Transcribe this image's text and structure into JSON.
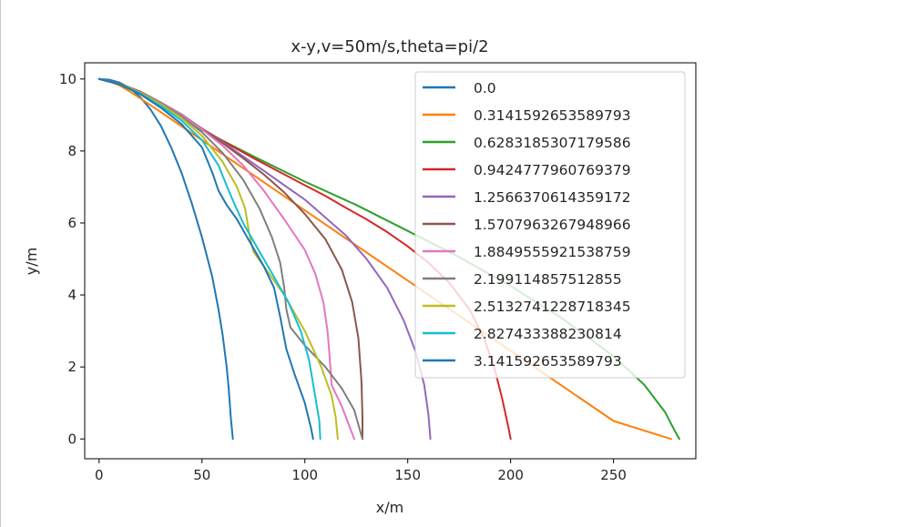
{
  "chart_data": {
    "type": "line",
    "title": "x-y,v=50m/s,theta=pi/2",
    "xlabel": "x/m",
    "ylabel": "y/m",
    "xlim": [
      -7,
      290
    ],
    "ylim": [
      -0.55,
      10.45
    ],
    "xticks": [
      0,
      50,
      100,
      150,
      200,
      250
    ],
    "yticks": [
      0,
      2,
      4,
      6,
      8,
      10
    ],
    "grid": false,
    "legend_position": "upper right",
    "series": [
      {
        "name": "0.0",
        "color": "#1f77b4",
        "points": [
          [
            0,
            10
          ],
          [
            5,
            9.98
          ],
          [
            10,
            9.9
          ],
          [
            15,
            9.75
          ],
          [
            20,
            9.5
          ],
          [
            25,
            9.15
          ],
          [
            30,
            8.7
          ],
          [
            35,
            8.1
          ],
          [
            40,
            7.4
          ],
          [
            45,
            6.55
          ],
          [
            50,
            5.6
          ],
          [
            55,
            4.5
          ],
          [
            58,
            3.6
          ],
          [
            60,
            2.9
          ],
          [
            62,
            2
          ],
          [
            63,
            1.4
          ],
          [
            64,
            0.6
          ],
          [
            65,
            0
          ]
        ]
      },
      {
        "name": "0.3141592653589793",
        "color": "#ff7f0e",
        "points": [
          [
            0,
            10
          ],
          [
            5,
            9.94
          ],
          [
            10,
            9.82
          ],
          [
            15,
            9.65
          ],
          [
            20,
            9.46
          ],
          [
            30,
            9.08
          ],
          [
            50,
            8.3
          ],
          [
            75,
            7.33
          ],
          [
            100,
            6.35
          ],
          [
            150,
            4.4
          ],
          [
            200,
            2.45
          ],
          [
            250,
            0.5
          ],
          [
            278,
            0
          ]
        ]
      },
      {
        "name": "0.6283185307179586",
        "color": "#2ca02c",
        "points": [
          [
            0,
            10
          ],
          [
            10,
            9.85
          ],
          [
            20,
            9.6
          ],
          [
            30,
            9.3
          ],
          [
            40,
            8.95
          ],
          [
            50,
            8.58
          ],
          [
            75,
            7.85
          ],
          [
            100,
            7.15
          ],
          [
            125,
            6.5
          ],
          [
            150,
            5.78
          ],
          [
            175,
            5.05
          ],
          [
            200,
            4.25
          ],
          [
            225,
            3.35
          ],
          [
            250,
            2.3
          ],
          [
            265,
            1.5
          ],
          [
            275,
            0.75
          ],
          [
            280,
            0.2
          ],
          [
            282,
            0
          ]
        ]
      },
      {
        "name": "0.9424777960769379",
        "color": "#d62728",
        "points": [
          [
            0,
            10
          ],
          [
            10,
            9.87
          ],
          [
            20,
            9.62
          ],
          [
            30,
            9.3
          ],
          [
            40,
            8.98
          ],
          [
            50,
            8.62
          ],
          [
            60,
            8.28
          ],
          [
            75,
            7.8
          ],
          [
            90,
            7.35
          ],
          [
            100,
            7.05
          ],
          [
            110,
            6.75
          ],
          [
            120,
            6.42
          ],
          [
            130,
            6.1
          ],
          [
            140,
            5.75
          ],
          [
            150,
            5.35
          ],
          [
            160,
            4.9
          ],
          [
            170,
            4.35
          ],
          [
            180,
            3.6
          ],
          [
            187,
            2.8
          ],
          [
            192,
            2
          ],
          [
            196,
            1.1
          ],
          [
            199,
            0.3
          ],
          [
            200,
            0
          ]
        ]
      },
      {
        "name": "1.2566370614359172",
        "color": "#9467bd",
        "points": [
          [
            0,
            10
          ],
          [
            10,
            9.87
          ],
          [
            20,
            9.64
          ],
          [
            30,
            9.34
          ],
          [
            40,
            9
          ],
          [
            50,
            8.62
          ],
          [
            60,
            8.25
          ],
          [
            70,
            7.85
          ],
          [
            80,
            7.45
          ],
          [
            90,
            7.05
          ],
          [
            100,
            6.65
          ],
          [
            110,
            6.15
          ],
          [
            120,
            5.65
          ],
          [
            130,
            5
          ],
          [
            140,
            4.2
          ],
          [
            148,
            3.3
          ],
          [
            154,
            2.4
          ],
          [
            158,
            1.5
          ],
          [
            160,
            0.7
          ],
          [
            161,
            0
          ]
        ]
      },
      {
        "name": "1.5707963267948966",
        "color": "#8c564b",
        "points": [
          [
            0,
            10
          ],
          [
            10,
            9.87
          ],
          [
            20,
            9.65
          ],
          [
            30,
            9.35
          ],
          [
            40,
            9.02
          ],
          [
            50,
            8.62
          ],
          [
            60,
            8.22
          ],
          [
            70,
            7.8
          ],
          [
            80,
            7.35
          ],
          [
            90,
            6.85
          ],
          [
            100,
            6.25
          ],
          [
            110,
            5.55
          ],
          [
            118,
            4.7
          ],
          [
            123,
            3.8
          ],
          [
            126,
            2.8
          ],
          [
            127.5,
            1.6
          ],
          [
            128,
            0.6
          ],
          [
            128,
            0
          ]
        ]
      },
      {
        "name": "1.8849555921538759",
        "color": "#e377c2",
        "points": [
          [
            0,
            10
          ],
          [
            10,
            9.86
          ],
          [
            20,
            9.63
          ],
          [
            30,
            9.35
          ],
          [
            40,
            9
          ],
          [
            50,
            8.6
          ],
          [
            60,
            8.15
          ],
          [
            70,
            7.6
          ],
          [
            80,
            6.9
          ],
          [
            90,
            6.1
          ],
          [
            100,
            5.25
          ],
          [
            105,
            4.6
          ],
          [
            109,
            3.8
          ],
          [
            111,
            3
          ],
          [
            112,
            2.3
          ],
          [
            113,
            1.5
          ],
          [
            118,
            0.9
          ],
          [
            124,
            0
          ]
        ]
      },
      {
        "name": "2.199114857512855",
        "color": "#7f7f7f",
        "points": [
          [
            0,
            10
          ],
          [
            10,
            9.86
          ],
          [
            20,
            9.63
          ],
          [
            30,
            9.33
          ],
          [
            40,
            8.96
          ],
          [
            50,
            8.52
          ],
          [
            60,
            7.95
          ],
          [
            70,
            7.2
          ],
          [
            78,
            6.4
          ],
          [
            84,
            5.6
          ],
          [
            88,
            4.9
          ],
          [
            90,
            4.2
          ],
          [
            91,
            3.6
          ],
          [
            93,
            3.1
          ],
          [
            100,
            2.6
          ],
          [
            110,
            2
          ],
          [
            118,
            1.4
          ],
          [
            124,
            0.8
          ],
          [
            127,
            0.2
          ],
          [
            128,
            0
          ]
        ]
      },
      {
        "name": "2.5132741228718345",
        "color": "#bcbd22",
        "points": [
          [
            0,
            10
          ],
          [
            10,
            9.86
          ],
          [
            20,
            9.62
          ],
          [
            30,
            9.3
          ],
          [
            40,
            8.92
          ],
          [
            50,
            8.42
          ],
          [
            60,
            7.7
          ],
          [
            67,
            7
          ],
          [
            71,
            6.4
          ],
          [
            73,
            5.7
          ],
          [
            75,
            5.2
          ],
          [
            80,
            4.8
          ],
          [
            90,
            4
          ],
          [
            100,
            3
          ],
          [
            108,
            2
          ],
          [
            113,
            1.2
          ],
          [
            115,
            0.6
          ],
          [
            116,
            0
          ]
        ]
      },
      {
        "name": "2.827433388230814",
        "color": "#17becf",
        "points": [
          [
            0,
            10
          ],
          [
            10,
            9.86
          ],
          [
            20,
            9.6
          ],
          [
            30,
            9.25
          ],
          [
            40,
            8.85
          ],
          [
            50,
            8.3
          ],
          [
            58,
            7.6
          ],
          [
            63,
            6.9
          ],
          [
            66,
            6.5
          ],
          [
            70,
            6
          ],
          [
            77,
            5.3
          ],
          [
            85,
            4.5
          ],
          [
            92,
            3.8
          ],
          [
            98,
            3
          ],
          [
            102,
            2.2
          ],
          [
            105,
            1.2
          ],
          [
            107,
            0.5
          ],
          [
            107.5,
            0
          ]
        ]
      },
      {
        "name": "3.141592653589793",
        "color": "#1f77b4",
        "points": [
          [
            0,
            10
          ],
          [
            10,
            9.85
          ],
          [
            20,
            9.58
          ],
          [
            30,
            9.2
          ],
          [
            40,
            8.75
          ],
          [
            50,
            8.1
          ],
          [
            55,
            7.4
          ],
          [
            58,
            6.9
          ],
          [
            62,
            6.5
          ],
          [
            67,
            6.1
          ],
          [
            73,
            5.5
          ],
          [
            80,
            4.8
          ],
          [
            85,
            4.2
          ],
          [
            88,
            3.4
          ],
          [
            91,
            2.5
          ],
          [
            95,
            1.8
          ],
          [
            100,
            1
          ],
          [
            103,
            0.3
          ],
          [
            104,
            0
          ]
        ]
      }
    ]
  }
}
